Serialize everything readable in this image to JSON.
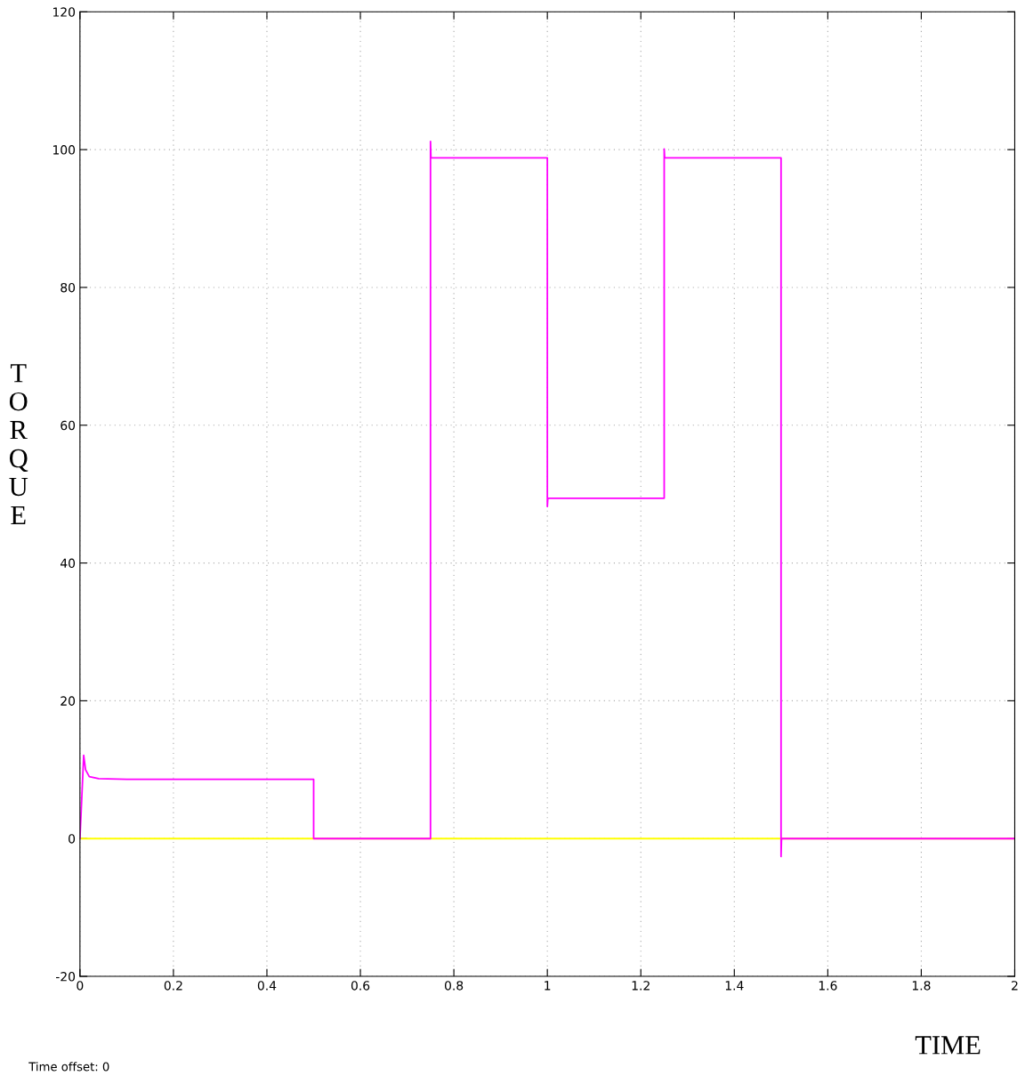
{
  "chart_data": {
    "type": "line",
    "xlabel": "TIME",
    "ylabel": "TORQUE",
    "xlim": [
      0,
      2
    ],
    "ylim": [
      -20,
      120
    ],
    "xticks": [
      0,
      0.2,
      0.4,
      0.6,
      0.8,
      1,
      1.2,
      1.4,
      1.6,
      1.8,
      2
    ],
    "yticks": [
      -20,
      0,
      20,
      40,
      60,
      80,
      100,
      120
    ],
    "grid": true,
    "line_style": "solid",
    "marker": "none",
    "annotations": [
      "Time offset: 0"
    ],
    "series": [
      {
        "color": "#ffff00",
        "x": [
          0,
          2
        ],
        "values": [
          0,
          0
        ]
      },
      {
        "color": "#ff00ff",
        "x": [
          0,
          0.004,
          0.008,
          0.012,
          0.02,
          0.04,
          0.1,
          0.5,
          0.5,
          0.75,
          0.75,
          0.751,
          1.0,
          1.0,
          1.001,
          1.25,
          1.25,
          1.251,
          1.5,
          1.5,
          1.501,
          2
        ],
        "values": [
          0,
          6,
          12.1,
          10,
          9.0,
          8.7,
          8.6,
          8.6,
          0,
          0,
          101.2,
          98.8,
          98.8,
          48.2,
          49.4,
          49.4,
          100.1,
          98.8,
          98.8,
          -2.6,
          0,
          0
        ]
      }
    ]
  }
}
